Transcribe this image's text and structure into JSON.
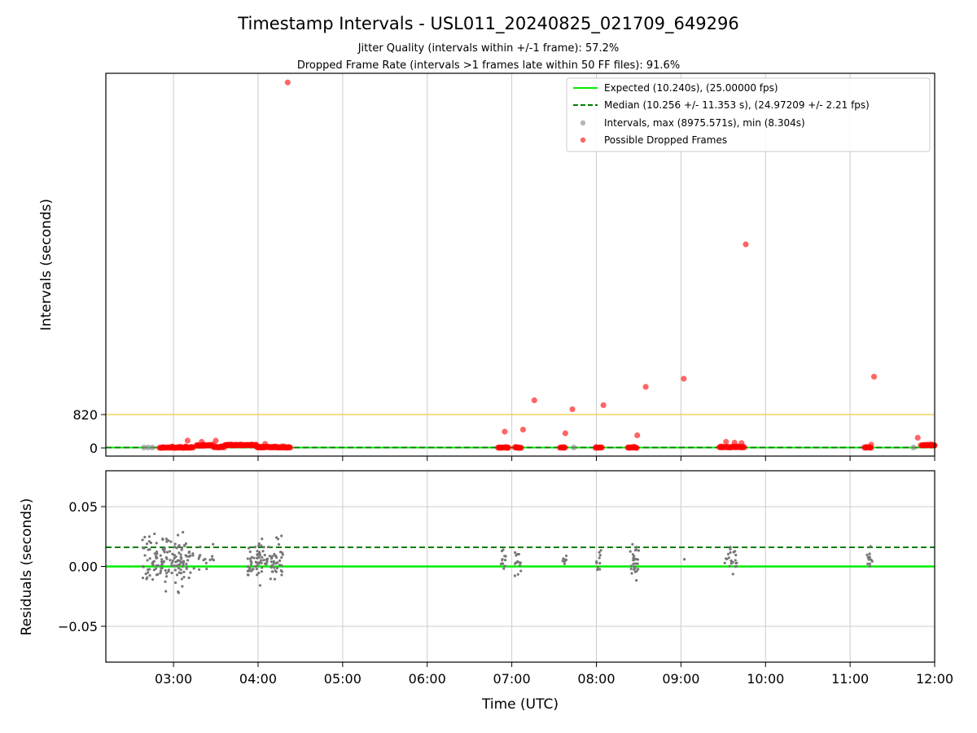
{
  "chart_data": [
    {
      "type": "scatter",
      "panel": "top",
      "title": "Timestamp Intervals - USL011_20240825_021709_649296",
      "subtitle_lines": [
        "Jitter Quality (intervals within +/-1 frame): 57.2%",
        "Dropped Frame Rate (intervals >1 frames late within 50 FF files): 91.6%"
      ],
      "ylabel": "Intervals (seconds)",
      "xlim": [
        "02:12",
        "12:00"
      ],
      "ylim": [
        -200,
        9200
      ],
      "yticks": [
        {
          "value": 0,
          "label": "0"
        },
        {
          "value": 820,
          "label": "820"
        }
      ],
      "threshold_line": {
        "value": 820,
        "color": "#f5c842"
      },
      "grid": "vertical",
      "legend_position": "top-right",
      "legend": [
        {
          "label": "Expected (10.240s), (25.00000 fps)",
          "style": "line",
          "color": "#00ee00"
        },
        {
          "label": "Median (10.256 +/- 11.353 s), (24.97209 +/- 2.21 fps)",
          "style": "dashed",
          "color": "#008000"
        },
        {
          "label": "Intervals, max (8975.571s), min (8.304s)",
          "style": "dot",
          "color": "#999999"
        },
        {
          "label": "Possible Dropped Frames",
          "style": "dot",
          "color": "#ff0000"
        }
      ],
      "series": [
        {
          "name": "Possible Dropped Frames",
          "color": "#ff0000",
          "points": [
            [
              "04:21",
              8975
            ],
            [
              "09:46",
              5000
            ],
            [
              "11:17",
              1750
            ],
            [
              "09:02",
              1700
            ],
            [
              "08:35",
              1500
            ],
            [
              "07:16",
              1170
            ],
            [
              "07:43",
              950
            ],
            [
              "08:05",
              1050
            ],
            [
              "06:55",
              400
            ],
            [
              "07:08",
              450
            ],
            [
              "07:38",
              360
            ],
            [
              "08:29",
              310
            ],
            [
              "11:48",
              250
            ],
            [
              "03:10",
              180
            ],
            [
              "03:20",
              150
            ],
            [
              "03:30",
              180
            ],
            [
              "04:05",
              100
            ],
            [
              "09:32",
              150
            ],
            [
              "09:38",
              130
            ],
            [
              "09:43",
              120
            ],
            [
              "11:15",
              80
            ],
            [
              "12:00",
              60
            ]
          ],
          "cluster_ranges": [
            {
              "start": "02:50",
              "end": "03:14",
              "y": 0
            },
            {
              "start": "03:16",
              "end": "03:28",
              "y": 50
            },
            {
              "start": "03:28",
              "end": "03:36",
              "y": 10
            },
            {
              "start": "03:36",
              "end": "03:59",
              "y": 60
            },
            {
              "start": "03:59",
              "end": "04:23",
              "y": 5
            },
            {
              "start": "06:50",
              "end": "06:58",
              "y": 0
            },
            {
              "start": "07:02",
              "end": "07:07",
              "y": 0
            },
            {
              "start": "07:34",
              "end": "07:38",
              "y": 0
            },
            {
              "start": "07:59",
              "end": "08:04",
              "y": 0
            },
            {
              "start": "08:22",
              "end": "08:29",
              "y": 0
            },
            {
              "start": "09:27",
              "end": "09:45",
              "y": 10
            },
            {
              "start": "11:10",
              "end": "11:15",
              "y": 0
            },
            {
              "start": "11:50",
              "end": "12:00",
              "y": 60
            }
          ]
        },
        {
          "name": "Intervals",
          "color": "#888888",
          "points": [
            [
              "02:39",
              10
            ],
            [
              "02:42",
              10
            ],
            [
              "02:45",
              10
            ],
            [
              "07:44",
              10
            ],
            [
              "11:45",
              10
            ]
          ]
        }
      ],
      "expected_line": 10.24,
      "median_line": 10.256
    },
    {
      "type": "scatter",
      "panel": "bottom",
      "xlabel": "Time (UTC)",
      "ylabel": "Residuals (seconds)",
      "xlim": [
        "02:12",
        "12:00"
      ],
      "ylim": [
        -0.08,
        0.08
      ],
      "yticks": [
        {
          "value": 0.05,
          "label": "0.05"
        },
        {
          "value": 0.0,
          "label": "0.00"
        },
        {
          "value": -0.05,
          "label": "−0.05"
        }
      ],
      "xticks": [
        "03:00",
        "04:00",
        "05:00",
        "06:00",
        "07:00",
        "08:00",
        "09:00",
        "10:00",
        "11:00",
        "12:00"
      ],
      "grid": "both",
      "expected_line": 0.0,
      "median_line": 0.016,
      "series": [
        {
          "name": "Residuals",
          "color": "#777777",
          "clusters": [
            {
              "start": "02:38",
              "end": "03:12",
              "count": 140,
              "spread": 0.035
            },
            {
              "start": "03:12",
              "end": "03:30",
              "count": 18,
              "spread": 0.03
            },
            {
              "start": "03:52",
              "end": "04:18",
              "count": 100,
              "spread": 0.026
            },
            {
              "start": "06:52",
              "end": "06:56",
              "count": 12,
              "spread": 0.02
            },
            {
              "start": "07:02",
              "end": "07:07",
              "count": 14,
              "spread": 0.018
            },
            {
              "start": "07:36",
              "end": "07:39",
              "count": 7,
              "spread": 0.012
            },
            {
              "start": "08:00",
              "end": "08:04",
              "count": 10,
              "spread": 0.022
            },
            {
              "start": "08:24",
              "end": "08:30",
              "count": 30,
              "spread": 0.02
            },
            {
              "start": "09:02",
              "end": "09:03",
              "count": 1,
              "spread": 0.005
            },
            {
              "start": "09:31",
              "end": "09:40",
              "count": 22,
              "spread": 0.018
            },
            {
              "start": "11:11",
              "end": "11:16",
              "count": 12,
              "spread": 0.02
            }
          ]
        }
      ]
    }
  ]
}
